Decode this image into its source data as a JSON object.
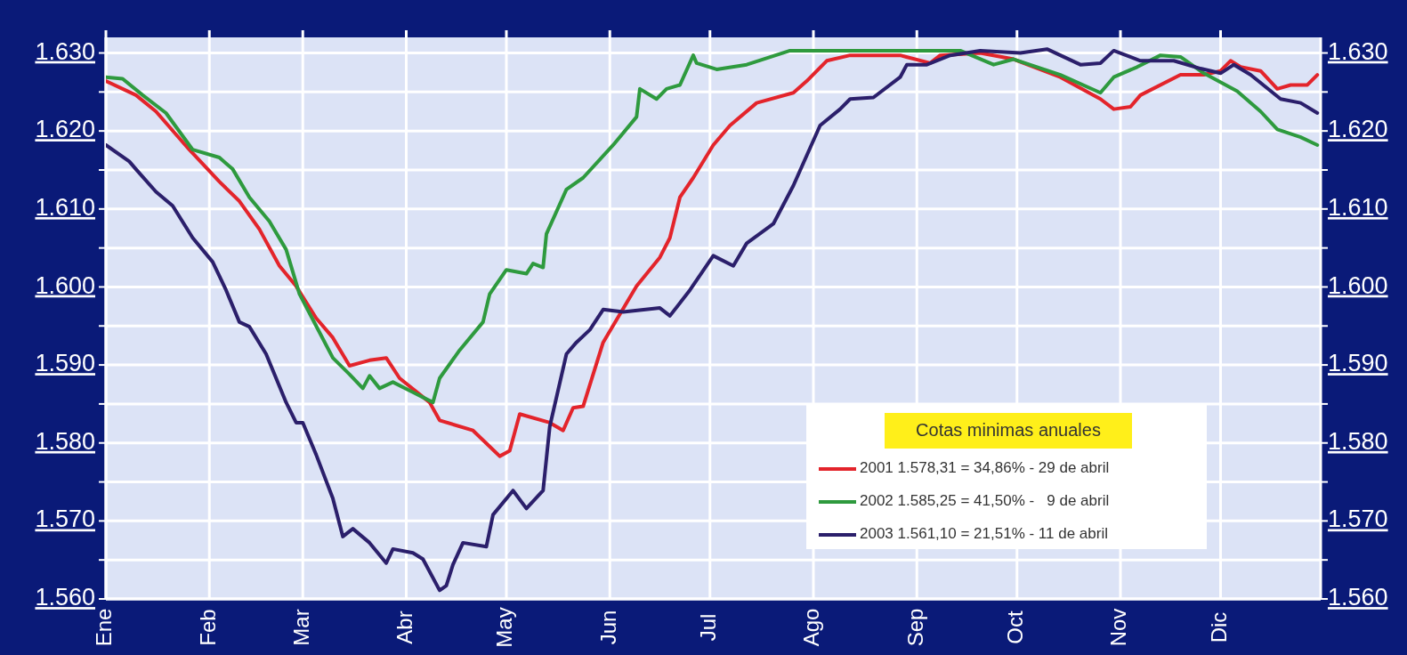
{
  "chart_data": {
    "type": "line",
    "legend_title": "Cotas minimas anuales",
    "xlim": [
      "--01-01",
      "--12-31"
    ],
    "xticks": [
      {
        "value": "--01-01",
        "label": "Ene"
      },
      {
        "value": "--02-01",
        "label": "Feb"
      },
      {
        "value": "--03-01",
        "label": "Mar"
      },
      {
        "value": "--04-01",
        "label": "Abr"
      },
      {
        "value": "--05-01",
        "label": "May"
      },
      {
        "value": "--06-01",
        "label": "Jun"
      },
      {
        "value": "--07-01",
        "label": "Jul"
      },
      {
        "value": "--08-01",
        "label": "Ago"
      },
      {
        "value": "--09-01",
        "label": "Sep"
      },
      {
        "value": "--10-01",
        "label": "Oct"
      },
      {
        "value": "--11-01",
        "label": "Nov"
      },
      {
        "value": "--12-01",
        "label": "Dic"
      }
    ],
    "ylim": [
      1560,
      1632
    ],
    "yticks": [
      {
        "value": 1560,
        "label": "1.560"
      },
      {
        "value": 1565,
        "label": null
      },
      {
        "value": 1570,
        "label": "1.570"
      },
      {
        "value": 1575,
        "label": null
      },
      {
        "value": 1580,
        "label": "1.580"
      },
      {
        "value": 1585,
        "label": null
      },
      {
        "value": 1590,
        "label": "1.590"
      },
      {
        "value": 1595,
        "label": null
      },
      {
        "value": 1600,
        "label": "1.600"
      },
      {
        "value": 1605,
        "label": null
      },
      {
        "value": 1610,
        "label": "1.610"
      },
      {
        "value": 1615,
        "label": null
      },
      {
        "value": 1620,
        "label": "1.620"
      },
      {
        "value": 1625,
        "label": null
      },
      {
        "value": 1630,
        "label": "1.630"
      }
    ],
    "y2lim": [
      1560,
      1632
    ],
    "y2ticks": [
      {
        "value": 1560,
        "label": "1.560"
      },
      {
        "value": 1565,
        "label": null
      },
      {
        "value": 1570,
        "label": "1.570"
      },
      {
        "value": 1575,
        "label": null
      },
      {
        "value": 1580,
        "label": "1.580"
      },
      {
        "value": 1585,
        "label": null
      },
      {
        "value": 1590,
        "label": "1.590"
      },
      {
        "value": 1595,
        "label": null
      },
      {
        "value": 1600,
        "label": "1.600"
      },
      {
        "value": 1605,
        "label": null
      },
      {
        "value": 1610,
        "label": "1.610"
      },
      {
        "value": 1615,
        "label": null
      },
      {
        "value": 1620,
        "label": "1.620"
      },
      {
        "value": 1625,
        "label": null
      },
      {
        "value": 1630,
        "label": "1.630"
      }
    ],
    "grid": true,
    "legend": "bottom right",
    "series": [
      {
        "name": "2001 1.578,31 = 34,86% - 29 de abril",
        "color": "#e3242b",
        "x": [
          "--01-01",
          "--01-10",
          "--01-16",
          "--01-26",
          "--02-04",
          "--02-10",
          "--02-16",
          "--02-22",
          "--02-27",
          "--03-05",
          "--03-10",
          "--03-15",
          "--03-21",
          "--03-26",
          "--03-30",
          "--04-08",
          "--04-11",
          "--04-21",
          "--04-29",
          "--05-02",
          "--05-05",
          "--05-14",
          "--05-18",
          "--05-21",
          "--05-24",
          "--05-30",
          "--06-09",
          "--06-16",
          "--06-19",
          "--06-22",
          "--06-26",
          "--07-02",
          "--07-07",
          "--07-15",
          "--07-26",
          "--07-30",
          "--08-05",
          "--08-12",
          "--08-27",
          "--09-05",
          "--09-08",
          "--09-20",
          "--09-30",
          "--10-14",
          "--10-26",
          "--10-30",
          "--11-04",
          "--11-07",
          "--11-19",
          "--11-26",
          "--12-01",
          "--12-04",
          "--12-07",
          "--12-13",
          "--12-18",
          "--12-22",
          "--12-27",
          "--12-30"
        ],
        "values": [
          1626.4,
          1624.6,
          1622.5,
          1617.6,
          1613.5,
          1611,
          1607.4,
          1602.7,
          1600.1,
          1596,
          1593.5,
          1589.9,
          1590.6,
          1590.9,
          1588.3,
          1585.2,
          1582.9,
          1581.6,
          1578.3,
          1579,
          1583.7,
          1582.6,
          1581.6,
          1584.5,
          1584.7,
          1592.9,
          1600.1,
          1603.8,
          1606.3,
          1611.5,
          1614,
          1618.2,
          1620.7,
          1623.6,
          1624.9,
          1626.4,
          1629,
          1629.7,
          1629.7,
          1628.7,
          1629.7,
          1630,
          1629.2,
          1626.9,
          1624.1,
          1622.8,
          1623.1,
          1624.6,
          1627.2,
          1627.2,
          1627.7,
          1629,
          1628.2,
          1627.7,
          1625.4,
          1625.9,
          1625.9,
          1627.2
        ]
      },
      {
        "name": "2002 1.585,25 = 41,50% -   9 de abril",
        "color": "#2e9a3e",
        "x": [
          "--01-01",
          "--01-06",
          "--01-12",
          "--01-19",
          "--01-27",
          "--02-04",
          "--02-08",
          "--02-13",
          "--02-19",
          "--02-24",
          "--02-28",
          "--03-05",
          "--03-10",
          "--03-15",
          "--03-19",
          "--03-21",
          "--03-24",
          "--03-28",
          "--04-03",
          "--04-09",
          "--04-11",
          "--04-17",
          "--04-24",
          "--04-26",
          "--05-01",
          "--05-07",
          "--05-09",
          "--05-12",
          "--05-13",
          "--05-19",
          "--05-24",
          "--06-02",
          "--06-09",
          "--06-10",
          "--06-15",
          "--06-18",
          "--06-22",
          "--06-26",
          "--06-27",
          "--07-03",
          "--07-12",
          "--07-25",
          "--08-15",
          "--09-14",
          "--09-24",
          "--09-30",
          "--10-14",
          "--10-26",
          "--10-30",
          "--11-06",
          "--11-13",
          "--11-19",
          "--11-26",
          "--12-06",
          "--12-13",
          "--12-18",
          "--12-25",
          "--12-30"
        ],
        "values": [
          1626.9,
          1626.7,
          1624.6,
          1622.3,
          1617.6,
          1616.6,
          1615.1,
          1611.5,
          1608.4,
          1604.8,
          1599.1,
          1595,
          1590.9,
          1588.8,
          1587,
          1588.6,
          1587,
          1587.8,
          1586.5,
          1585.2,
          1588.3,
          1591.9,
          1595.5,
          1599.1,
          1602.2,
          1601.7,
          1603,
          1602.5,
          1606.8,
          1612.5,
          1614,
          1618.2,
          1621.8,
          1625.4,
          1624.1,
          1625.4,
          1625.9,
          1629.7,
          1628.7,
          1627.9,
          1628.5,
          1630.3,
          1630.3,
          1630.3,
          1628.5,
          1629.2,
          1627.2,
          1624.9,
          1626.9,
          1628.2,
          1629.7,
          1629.5,
          1627.4,
          1625.1,
          1622.5,
          1620.2,
          1619.2,
          1618.2
        ]
      },
      {
        "name": "2003 1.561,10 = 21,51% - 11 de abril",
        "color": "#2b1f6b",
        "x": [
          "--01-01",
          "--01-08",
          "--01-10",
          "--01-16",
          "--01-21",
          "--01-27",
          "--02-02",
          "--02-06",
          "--02-10",
          "--02-13",
          "--02-18",
          "--02-24",
          "--02-27",
          "--03-01",
          "--03-05",
          "--03-10",
          "--03-13",
          "--03-16",
          "--03-21",
          "--03-26",
          "--03-28",
          "--04-03",
          "--04-06",
          "--04-11",
          "--04-13",
          "--04-15",
          "--04-18",
          "--04-25",
          "--04-27",
          "--05-03",
          "--05-07",
          "--05-12",
          "--05-14",
          "--05-19",
          "--05-22",
          "--05-26",
          "--05-30",
          "--06-05",
          "--06-16",
          "--06-19",
          "--06-25",
          "--07-02",
          "--07-08",
          "--07-12",
          "--07-20",
          "--07-26",
          "--08-03",
          "--08-09",
          "--08-12",
          "--08-19",
          "--08-27",
          "--08-29",
          "--09-04",
          "--09-11",
          "--09-20",
          "--10-02",
          "--10-10",
          "--10-20",
          "--10-26",
          "--10-30",
          "--11-07",
          "--11-17",
          "--11-25",
          "--12-01",
          "--12-05",
          "--12-10",
          "--12-19",
          "--12-25",
          "--12-30"
        ],
        "values": [
          1618.2,
          1616.1,
          1615.1,
          1612.2,
          1610.4,
          1606.3,
          1603.2,
          1599.6,
          1595.5,
          1594.9,
          1591.4,
          1585.2,
          1582.6,
          1582.6,
          1578.5,
          1572.9,
          1568,
          1569,
          1567.2,
          1564.6,
          1566.4,
          1565.9,
          1565.1,
          1561.1,
          1561.7,
          1564.4,
          1567.2,
          1566.7,
          1570.8,
          1573.9,
          1571.6,
          1573.9,
          1582.1,
          1591.4,
          1592.9,
          1594.5,
          1597.1,
          1596.8,
          1597.3,
          1596.3,
          1599.6,
          1604,
          1602.7,
          1605.6,
          1608.1,
          1613,
          1620.7,
          1622.8,
          1624.1,
          1624.3,
          1626.9,
          1628.5,
          1628.5,
          1629.7,
          1630.3,
          1630,
          1630.5,
          1628.5,
          1628.7,
          1630.3,
          1629,
          1629,
          1628,
          1627.4,
          1628.5,
          1627.2,
          1624.1,
          1623.6,
          1622.3
        ]
      }
    ]
  }
}
